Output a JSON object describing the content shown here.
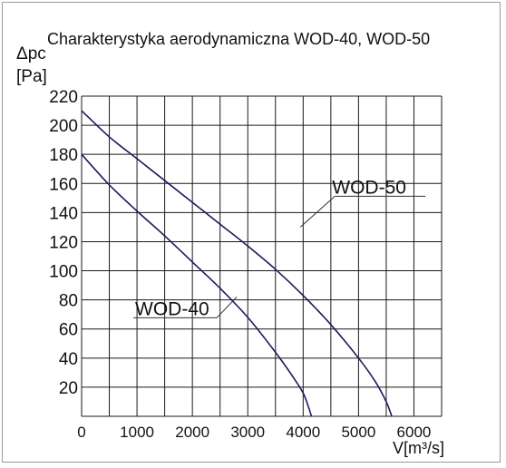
{
  "chart_data": {
    "type": "line",
    "title": "Charakterystyka aerodynamiczna WOD-40, WOD-50",
    "ylabel_symbol": "Δpc",
    "ylabel_unit": "[Pa]",
    "xlabel": "V[m³/s]",
    "xlim": [
      0,
      6500
    ],
    "ylim": [
      0,
      220
    ],
    "x_ticks": [
      0,
      1000,
      2000,
      3000,
      4000,
      5000,
      6000
    ],
    "y_ticks": [
      20,
      40,
      60,
      80,
      100,
      120,
      140,
      160,
      180,
      200,
      220
    ],
    "grid": true,
    "grid_x_step": 500,
    "grid_y_step": 20,
    "line_color": "#1a1a5e",
    "series": [
      {
        "name": "WOD-40",
        "x": [
          0,
          500,
          1000,
          1500,
          2000,
          2500,
          3000,
          3500,
          3800,
          4000,
          4100,
          4150
        ],
        "y": [
          180,
          159,
          141,
          124,
          106,
          88,
          68,
          44,
          28,
          16,
          6,
          0
        ],
        "label_text": "WOD-40",
        "label_anchor": [
          2800,
          82
        ]
      },
      {
        "name": "WOD-50",
        "x": [
          0,
          500,
          1000,
          1500,
          2000,
          2500,
          3000,
          3500,
          4000,
          4500,
          5000,
          5300,
          5500,
          5600
        ],
        "y": [
          210,
          192,
          177,
          162,
          147,
          132,
          117,
          101,
          83,
          63,
          40,
          24,
          10,
          0
        ],
        "label_text": "WOD-50",
        "label_anchor": [
          3950,
          130
        ]
      }
    ]
  }
}
